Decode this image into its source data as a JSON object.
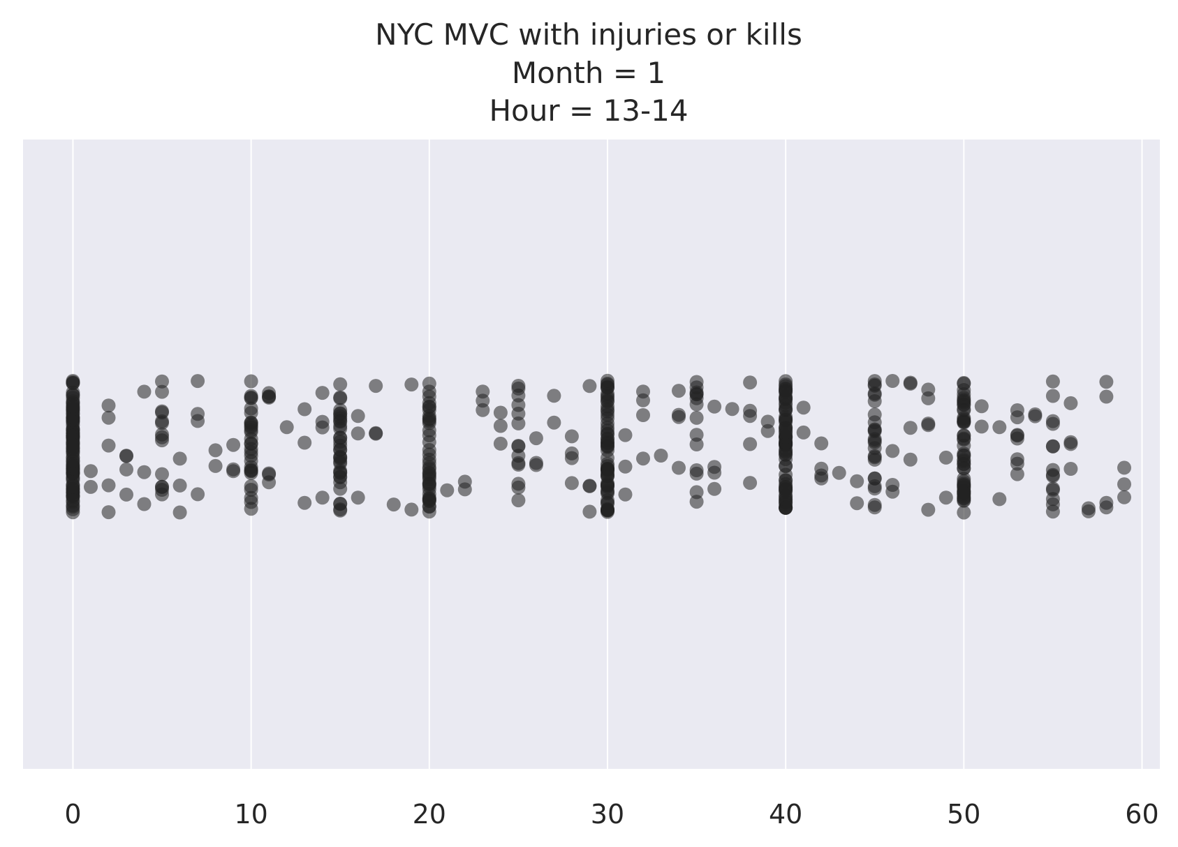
{
  "chart_data": {
    "type": "scatter",
    "title_lines": [
      "NYC MVC with injuries or kills",
      "Month = 1",
      "Hour = 13-14"
    ],
    "xlabel": "",
    "ylabel": "",
    "xlim": [
      -2.8,
      61.0
    ],
    "xticks": [
      0,
      10,
      20,
      30,
      40,
      50,
      60
    ],
    "grid": true,
    "background": "#eaeaf2",
    "grid_color": "#ffffff",
    "marker_color": "#222222",
    "marker_opacity": 0.55,
    "jitter": 0.4,
    "counts": [
      [
        0,
        90
      ],
      [
        1,
        2
      ],
      [
        2,
        5
      ],
      [
        3,
        4
      ],
      [
        4,
        3
      ],
      [
        5,
        14
      ],
      [
        6,
        3
      ],
      [
        7,
        4
      ],
      [
        8,
        2
      ],
      [
        9,
        3
      ],
      [
        10,
        30
      ],
      [
        11,
        7
      ],
      [
        12,
        1
      ],
      [
        13,
        3
      ],
      [
        14,
        4
      ],
      [
        15,
        34
      ],
      [
        16,
        3
      ],
      [
        17,
        3
      ],
      [
        18,
        1
      ],
      [
        19,
        2
      ],
      [
        20,
        40
      ],
      [
        21,
        1
      ],
      [
        22,
        2
      ],
      [
        23,
        3
      ],
      [
        24,
        3
      ],
      [
        25,
        14
      ],
      [
        26,
        3
      ],
      [
        27,
        2
      ],
      [
        28,
        4
      ],
      [
        29,
        4
      ],
      [
        30,
        60
      ],
      [
        31,
        3
      ],
      [
        32,
        4
      ],
      [
        33,
        1
      ],
      [
        34,
        4
      ],
      [
        35,
        14
      ],
      [
        36,
        4
      ],
      [
        37,
        1
      ],
      [
        38,
        5
      ],
      [
        39,
        2
      ],
      [
        40,
        70
      ],
      [
        41,
        2
      ],
      [
        42,
        4
      ],
      [
        43,
        1
      ],
      [
        44,
        2
      ],
      [
        45,
        24
      ],
      [
        46,
        4
      ],
      [
        47,
        4
      ],
      [
        48,
        5
      ],
      [
        49,
        2
      ],
      [
        50,
        50
      ],
      [
        51,
        2
      ],
      [
        52,
        2
      ],
      [
        53,
        8
      ],
      [
        54,
        2
      ],
      [
        55,
        14
      ],
      [
        56,
        4
      ],
      [
        57,
        2
      ],
      [
        58,
        4
      ],
      [
        59,
        3
      ]
    ]
  }
}
